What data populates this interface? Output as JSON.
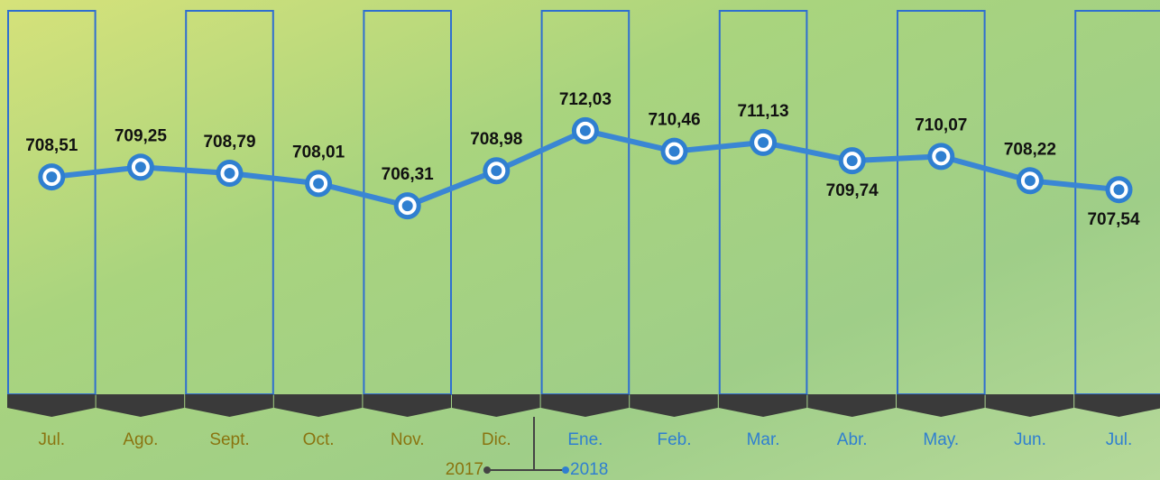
{
  "chart_data": {
    "type": "line",
    "categories": [
      "Jul.",
      "Ago.",
      "Sept.",
      "Oct.",
      "Nov.",
      "Dic.",
      "Ene.",
      "Feb.",
      "Mar.",
      "Abr.",
      "May.",
      "Jun.",
      "Jul."
    ],
    "values": [
      708.51,
      709.25,
      708.79,
      708.01,
      706.31,
      708.98,
      712.03,
      710.46,
      711.13,
      709.74,
      710.07,
      708.22,
      707.54
    ],
    "value_labels": [
      "708,51",
      "709,25",
      "708,79",
      "708,01",
      "706,31",
      "708,98",
      "712,03",
      "710,46",
      "711,13",
      "709,74",
      "710,07",
      "708,22",
      "707,54"
    ],
    "color": "#3a86d4",
    "x_label_colors": [
      "#8a7410",
      "#8a7410",
      "#8a7410",
      "#8a7410",
      "#8a7410",
      "#8a7410",
      "#2f7fd0",
      "#2f7fd0",
      "#2f7fd0",
      "#2f7fd0",
      "#2f7fd0",
      "#2f7fd0",
      "#2f7fd0"
    ],
    "ylim": [
      700,
      716
    ],
    "annotations": [
      "2017",
      "2018"
    ]
  }
}
